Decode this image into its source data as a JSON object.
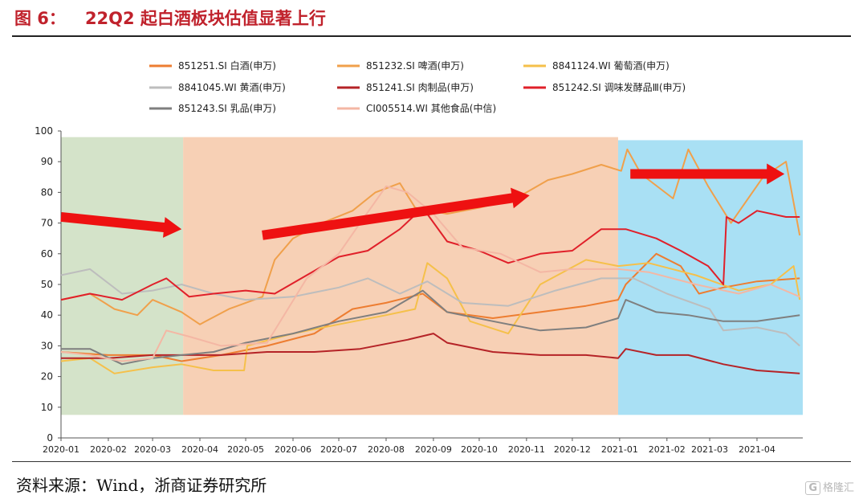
{
  "figure": {
    "label": "图 6：",
    "title": "22Q2 起白酒板块估值显著上行"
  },
  "source": "资料来源：Wind，浙商证券研究所",
  "watermark": "格隆汇",
  "watermark_icon": "g-logo-icon",
  "chart_data": {
    "type": "line",
    "title": "",
    "xlabel": "",
    "ylabel": "",
    "ylim": [
      0,
      100
    ],
    "yticks": [
      0,
      10,
      20,
      30,
      40,
      50,
      60,
      70,
      80,
      90,
      100
    ],
    "x_ticks": [
      "2020-01",
      "2020-02",
      "2020-03",
      "2020-04",
      "2020-05",
      "2020-06",
      "2020-07",
      "2020-08",
      "2020-09",
      "2020-10",
      "2020-11",
      "2020-12",
      "2021-01",
      "2021-02",
      "2021-03",
      "2021-04"
    ],
    "x_range": [
      "2020-01-01",
      "2021-05-01"
    ],
    "legend_position": "top",
    "grid": false,
    "shaded_periods": [
      {
        "start": "2020-01-01",
        "end": "2020-03-21",
        "ymax": 98,
        "color": "#d4e3c9"
      },
      {
        "start": "2020-03-21",
        "end": "2020-12-31",
        "ymax": 98,
        "color": "#f7d0b5"
      },
      {
        "start": "2020-12-31",
        "end": "2021-05-01",
        "ymax": 97,
        "color": "#a9e0f4"
      }
    ],
    "arrows": [
      {
        "from": [
          "2020-01-01",
          72
        ],
        "to": [
          "2020-03-20",
          68
        ],
        "color": "#ee1111"
      },
      {
        "from": [
          "2020-05-12",
          66
        ],
        "to": [
          "2020-11-03",
          79
        ],
        "color": "#ee1111"
      },
      {
        "from": [
          "2021-01-08",
          86
        ],
        "to": [
          "2021-04-19",
          86
        ],
        "color": "#ee1111"
      }
    ],
    "series": [
      {
        "name": "851251.SI 白酒(申万)",
        "color": "#ed7d31",
        "points": [
          [
            "2020-01-01",
            28
          ],
          [
            "2020-02-01",
            27
          ],
          [
            "2020-03-01",
            27
          ],
          [
            "2020-03-20",
            25
          ],
          [
            "2020-04-15",
            27
          ],
          [
            "2020-05-15",
            30
          ],
          [
            "2020-06-15",
            34
          ],
          [
            "2020-07-10",
            42
          ],
          [
            "2020-08-01",
            44
          ],
          [
            "2020-08-25",
            47
          ],
          [
            "2020-09-10",
            41
          ],
          [
            "2020-10-10",
            39
          ],
          [
            "2020-11-10",
            41
          ],
          [
            "2020-12-10",
            43
          ],
          [
            "2020-12-31",
            45
          ],
          [
            "2021-01-05",
            50
          ],
          [
            "2021-01-25",
            60
          ],
          [
            "2021-02-10",
            56
          ],
          [
            "2021-02-22",
            47
          ],
          [
            "2021-03-10",
            49
          ],
          [
            "2021-04-01",
            51
          ],
          [
            "2021-04-29",
            52
          ]
        ]
      },
      {
        "name": "851232.SI 啤酒(申万)",
        "color": "#f0a04b",
        "points": [
          [
            "2020-01-01",
            45
          ],
          [
            "2020-01-20",
            47
          ],
          [
            "2020-02-05",
            42
          ],
          [
            "2020-02-20",
            40
          ],
          [
            "2020-03-01",
            45
          ],
          [
            "2020-03-20",
            41
          ],
          [
            "2020-04-01",
            37
          ],
          [
            "2020-04-20",
            42
          ],
          [
            "2020-05-12",
            46
          ],
          [
            "2020-05-20",
            58
          ],
          [
            "2020-06-01",
            65
          ],
          [
            "2020-06-20",
            70
          ],
          [
            "2020-07-10",
            74
          ],
          [
            "2020-07-25",
            80
          ],
          [
            "2020-08-10",
            83
          ],
          [
            "2020-08-20",
            75
          ],
          [
            "2020-09-10",
            73
          ],
          [
            "2020-10-01",
            75
          ],
          [
            "2020-10-25",
            78
          ],
          [
            "2020-11-15",
            84
          ],
          [
            "2020-12-01",
            86
          ],
          [
            "2020-12-20",
            89
          ],
          [
            "2021-01-02",
            87
          ],
          [
            "2021-01-06",
            94
          ],
          [
            "2021-01-15",
            86
          ],
          [
            "2021-02-05",
            78
          ],
          [
            "2021-02-15",
            94
          ],
          [
            "2021-02-28",
            82
          ],
          [
            "2021-03-15",
            70
          ],
          [
            "2021-04-05",
            85
          ],
          [
            "2021-04-20",
            90
          ],
          [
            "2021-04-29",
            66
          ]
        ]
      },
      {
        "name": "8841124.WI 葡萄酒(申万)",
        "color": "#f5c04a",
        "points": [
          [
            "2020-01-01",
            25
          ],
          [
            "2020-01-20",
            26
          ],
          [
            "2020-02-05",
            21
          ],
          [
            "2020-03-01",
            23
          ],
          [
            "2020-03-20",
            24
          ],
          [
            "2020-04-10",
            22
          ],
          [
            "2020-04-30",
            22
          ],
          [
            "2020-05-02",
            30
          ],
          [
            "2020-06-01",
            34
          ],
          [
            "2020-07-01",
            37
          ],
          [
            "2020-08-01",
            40
          ],
          [
            "2020-08-20",
            42
          ],
          [
            "2020-08-28",
            57
          ],
          [
            "2020-09-10",
            52
          ],
          [
            "2020-09-25",
            38
          ],
          [
            "2020-10-20",
            34
          ],
          [
            "2020-11-10",
            50
          ],
          [
            "2020-12-10",
            58
          ],
          [
            "2020-12-31",
            56
          ],
          [
            "2021-01-20",
            57
          ],
          [
            "2021-02-20",
            53
          ],
          [
            "2021-03-20",
            48
          ],
          [
            "2021-04-10",
            50
          ],
          [
            "2021-04-25",
            56
          ],
          [
            "2021-04-29",
            45
          ]
        ]
      },
      {
        "name": "8841045.WI 黄酒(申万)",
        "color": "#bdbdbd",
        "points": [
          [
            "2020-01-01",
            53
          ],
          [
            "2020-01-20",
            55
          ],
          [
            "2020-02-10",
            47
          ],
          [
            "2020-03-01",
            48
          ],
          [
            "2020-03-20",
            50
          ],
          [
            "2020-04-10",
            47
          ],
          [
            "2020-05-01",
            45
          ],
          [
            "2020-06-01",
            46
          ],
          [
            "2020-07-01",
            49
          ],
          [
            "2020-07-20",
            52
          ],
          [
            "2020-08-10",
            47
          ],
          [
            "2020-08-28",
            51
          ],
          [
            "2020-09-20",
            44
          ],
          [
            "2020-10-20",
            43
          ],
          [
            "2020-11-20",
            48
          ],
          [
            "2020-12-20",
            52
          ],
          [
            "2021-01-10",
            52
          ],
          [
            "2021-02-01",
            47
          ],
          [
            "2021-03-01",
            42
          ],
          [
            "2021-03-10",
            35
          ],
          [
            "2021-04-01",
            36
          ],
          [
            "2021-04-20",
            34
          ],
          [
            "2021-04-29",
            30
          ]
        ]
      },
      {
        "name": "851241.SI 肉制品(申万)",
        "color": "#b52327",
        "points": [
          [
            "2020-01-01",
            26
          ],
          [
            "2020-02-01",
            26
          ],
          [
            "2020-03-01",
            27
          ],
          [
            "2020-03-20",
            27
          ],
          [
            "2020-04-15",
            27
          ],
          [
            "2020-05-15",
            28
          ],
          [
            "2020-06-15",
            28
          ],
          [
            "2020-07-15",
            29
          ],
          [
            "2020-08-15",
            32
          ],
          [
            "2020-09-01",
            34
          ],
          [
            "2020-09-10",
            31
          ],
          [
            "2020-10-10",
            28
          ],
          [
            "2020-11-10",
            27
          ],
          [
            "2020-12-10",
            27
          ],
          [
            "2020-12-31",
            26
          ],
          [
            "2021-01-05",
            29
          ],
          [
            "2021-01-25",
            27
          ],
          [
            "2021-02-15",
            27
          ],
          [
            "2021-03-10",
            24
          ],
          [
            "2021-04-01",
            22
          ],
          [
            "2021-04-29",
            21
          ]
        ]
      },
      {
        "name": "851242.SI 调味发酵品Ⅲ(申万)",
        "color": "#e0202a",
        "points": [
          [
            "2020-01-01",
            45
          ],
          [
            "2020-01-20",
            47
          ],
          [
            "2020-02-10",
            45
          ],
          [
            "2020-03-01",
            50
          ],
          [
            "2020-03-10",
            52
          ],
          [
            "2020-03-25",
            46
          ],
          [
            "2020-04-10",
            47
          ],
          [
            "2020-05-01",
            48
          ],
          [
            "2020-05-20",
            47
          ],
          [
            "2020-06-10",
            53
          ],
          [
            "2020-07-01",
            59
          ],
          [
            "2020-07-20",
            61
          ],
          [
            "2020-08-10",
            68
          ],
          [
            "2020-08-25",
            75
          ],
          [
            "2020-09-10",
            64
          ],
          [
            "2020-10-01",
            61
          ],
          [
            "2020-10-20",
            57
          ],
          [
            "2020-11-10",
            60
          ],
          [
            "2020-12-01",
            61
          ],
          [
            "2020-12-20",
            68
          ],
          [
            "2021-01-05",
            68
          ],
          [
            "2021-01-25",
            65
          ],
          [
            "2021-02-10",
            61
          ],
          [
            "2021-02-28",
            56
          ],
          [
            "2021-03-10",
            50
          ],
          [
            "2021-03-12",
            72
          ],
          [
            "2021-03-20",
            70
          ],
          [
            "2021-04-01",
            74
          ],
          [
            "2021-04-20",
            72
          ],
          [
            "2021-04-29",
            72
          ]
        ]
      },
      {
        "name": "851243.SI 乳品(申万)",
        "color": "#7f7f7f",
        "points": [
          [
            "2020-01-01",
            29
          ],
          [
            "2020-01-20",
            29
          ],
          [
            "2020-02-10",
            24
          ],
          [
            "2020-03-01",
            26
          ],
          [
            "2020-03-20",
            27
          ],
          [
            "2020-04-10",
            28
          ],
          [
            "2020-05-01",
            31
          ],
          [
            "2020-06-01",
            34
          ],
          [
            "2020-07-01",
            38
          ],
          [
            "2020-08-01",
            41
          ],
          [
            "2020-08-25",
            48
          ],
          [
            "2020-09-10",
            41
          ],
          [
            "2020-10-10",
            38
          ],
          [
            "2020-11-10",
            35
          ],
          [
            "2020-12-10",
            36
          ],
          [
            "2020-12-31",
            39
          ],
          [
            "2021-01-05",
            45
          ],
          [
            "2021-01-25",
            41
          ],
          [
            "2021-02-15",
            40
          ],
          [
            "2021-03-10",
            38
          ],
          [
            "2021-04-01",
            38
          ],
          [
            "2021-04-29",
            40
          ]
        ]
      },
      {
        "name": "CI005514.WI 其他食品(中信)",
        "color": "#f4b7a4",
        "points": [
          [
            "2020-01-01",
            28
          ],
          [
            "2020-01-20",
            27
          ],
          [
            "2020-02-10",
            25
          ],
          [
            "2020-03-01",
            26
          ],
          [
            "2020-03-10",
            35
          ],
          [
            "2020-03-25",
            33
          ],
          [
            "2020-04-15",
            30
          ],
          [
            "2020-05-15",
            31
          ],
          [
            "2020-06-10",
            52
          ],
          [
            "2020-07-01",
            60
          ],
          [
            "2020-07-15",
            70
          ],
          [
            "2020-08-01",
            82
          ],
          [
            "2020-08-15",
            80
          ],
          [
            "2020-09-01",
            73
          ],
          [
            "2020-09-20",
            62
          ],
          [
            "2020-10-15",
            60
          ],
          [
            "2020-11-10",
            54
          ],
          [
            "2020-12-01",
            55
          ],
          [
            "2020-12-31",
            55
          ],
          [
            "2021-01-20",
            54
          ],
          [
            "2021-02-20",
            50
          ],
          [
            "2021-03-20",
            47
          ],
          [
            "2021-04-10",
            50
          ],
          [
            "2021-04-29",
            46
          ]
        ]
      }
    ]
  }
}
